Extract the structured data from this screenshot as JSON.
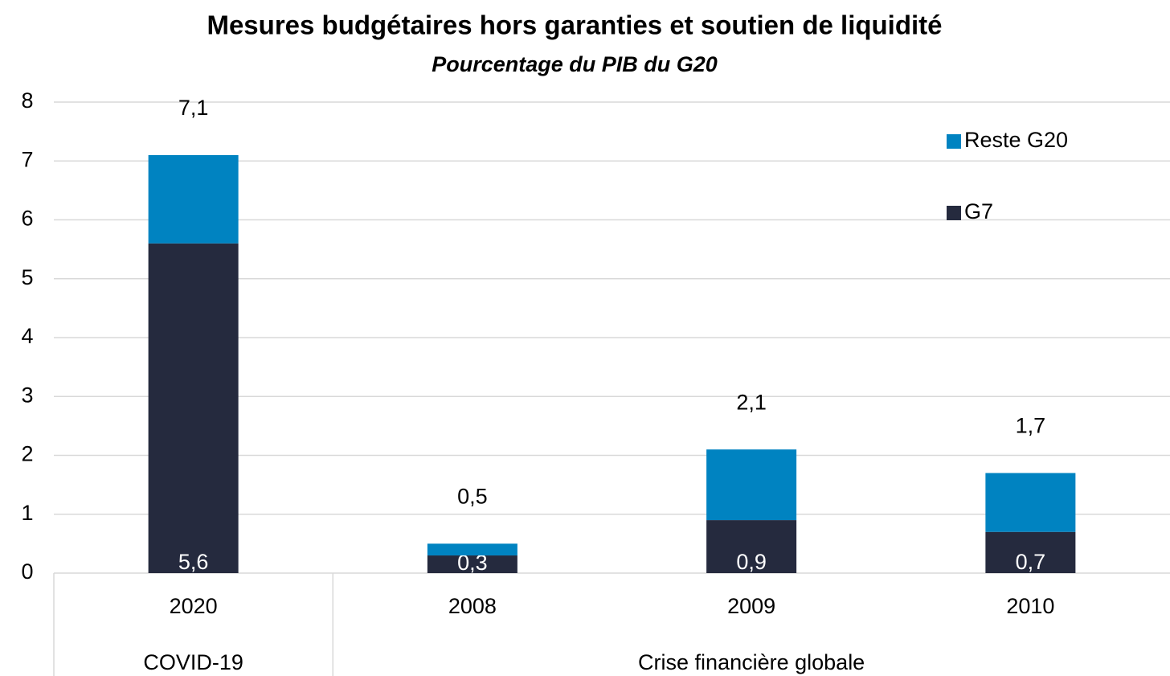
{
  "chart_data": {
    "type": "stacked_bar",
    "title": "Mesures budgétaires hors garanties et soutien de liquidité",
    "subtitle": "Pourcentage du PIB du G20",
    "categories": [
      "2020",
      "2008",
      "2009",
      "2010"
    ],
    "category_groups": [
      {
        "label": "COVID-19",
        "span": 1
      },
      {
        "label": "Crise financière globale",
        "span": 3
      }
    ],
    "series": [
      {
        "name": "G7",
        "color": "#252a3e",
        "values": [
          5.6,
          0.3,
          0.9,
          0.7
        ],
        "value_labels": [
          "5,6",
          "0,3",
          "0,9",
          "0,7"
        ]
      },
      {
        "name": "Reste G20",
        "color": "#0083c1",
        "values": [
          1.5,
          0.2,
          1.2,
          1.0
        ]
      }
    ],
    "totals": [
      7.1,
      0.5,
      2.1,
      1.7
    ],
    "total_labels": [
      "7,1",
      "0,5",
      "2,1",
      "1,7"
    ],
    "ylim": [
      0,
      8
    ],
    "yticks": [
      0,
      1,
      2,
      3,
      4,
      5,
      6,
      7,
      8
    ],
    "grid": true,
    "legend": "upper right"
  }
}
